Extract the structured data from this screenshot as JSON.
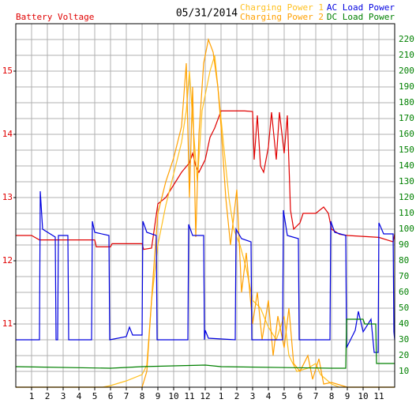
{
  "chart_data": {
    "type": "line",
    "title": "05/31/2014",
    "xlim": [
      0,
      24
    ],
    "xticks": [
      1,
      2,
      3,
      4,
      5,
      6,
      7,
      8,
      9,
      10,
      11,
      12,
      {
        "value": 13,
        "label": "1"
      },
      {
        "value": 14,
        "label": "2"
      },
      {
        "value": 15,
        "label": "3"
      },
      {
        "value": 16,
        "label": "4"
      },
      {
        "value": 17,
        "label": "5"
      },
      {
        "value": 18,
        "label": "6"
      },
      {
        "value": 19,
        "label": "7"
      },
      {
        "value": 20,
        "label": "8"
      },
      {
        "value": 21,
        "label": "9"
      },
      {
        "value": 22,
        "label": "10"
      },
      {
        "value": 23,
        "label": "11"
      }
    ],
    "ylim": [
      10,
      15.75
    ],
    "yticks": [
      11,
      12,
      13,
      14,
      15
    ],
    "ycolor": "#e00000",
    "y2lim": [
      0,
      230
    ],
    "y2ticks": [
      10,
      20,
      30,
      40,
      50,
      60,
      70,
      80,
      90,
      100,
      110,
      120,
      130,
      140,
      150,
      160,
      170,
      180,
      190,
      200,
      210,
      220
    ],
    "y2color": "#008000",
    "grid": true,
    "series": [
      {
        "name": "Battery Voltage",
        "color": "#e00000",
        "x": [
          0,
          1,
          1.5,
          5,
          5.1,
          6,
          6.1,
          8,
          8.1,
          8.6,
          8.8,
          9,
          9.5,
          10,
          10.5,
          11,
          11.2,
          11.4,
          11.6,
          12,
          12.3,
          12.6,
          13,
          14.5,
          15,
          15.1,
          15.3,
          15.5,
          15.7,
          16,
          16.2,
          16.5,
          16.7,
          17,
          17.2,
          17.4,
          17.6,
          18,
          18.2,
          19,
          19.5,
          19.8,
          20,
          20.5,
          21,
          23,
          23.5,
          23.9,
          24
        ],
        "values": [
          12.4,
          12.4,
          12.33,
          12.33,
          12.22,
          12.22,
          12.27,
          12.27,
          12.18,
          12.2,
          12.55,
          12.9,
          13.0,
          13.2,
          13.4,
          13.55,
          13.7,
          13.5,
          13.4,
          13.6,
          13.95,
          14.1,
          14.37,
          14.37,
          14.36,
          13.6,
          14.3,
          13.5,
          13.4,
          13.8,
          14.35,
          13.6,
          14.35,
          13.7,
          14.3,
          12.8,
          12.5,
          12.6,
          12.75,
          12.75,
          12.85,
          12.75,
          12.5,
          12.42,
          12.4,
          12.37,
          12.33,
          12.3,
          12.42
        ]
      },
      {
        "name": "Charging Power 1",
        "color": "#ffc020",
        "axis": "y2",
        "x": [
          0,
          5.5,
          6,
          7,
          8,
          8.3,
          8.6,
          9,
          9.5,
          10,
          10.5,
          10.8,
          11,
          11.2,
          11.5,
          11.8,
          12,
          12.3,
          12.6,
          12.9,
          13.2,
          13.5,
          13.8,
          14.2,
          14.6,
          15,
          15.5,
          16,
          16.5,
          17,
          17.3,
          17.8,
          18.5,
          19,
          19.3,
          20,
          20.5,
          24
        ],
        "values": [
          0,
          0,
          1,
          4,
          8,
          14,
          55,
          90,
          115,
          135,
          155,
          175,
          200,
          170,
          130,
          175,
          185,
          200,
          210,
          180,
          150,
          120,
          100,
          90,
          75,
          55,
          50,
          38,
          30,
          45,
          20,
          10,
          12,
          15,
          8,
          2,
          0,
          0
        ]
      },
      {
        "name": "Charging Power 2",
        "color": "#ffa000",
        "axis": "y2",
        "x": [
          0,
          8,
          8.3,
          8.7,
          9,
          9.5,
          10,
          10.5,
          10.8,
          11,
          11.2,
          11.4,
          11.6,
          11.9,
          12.2,
          12.5,
          12.8,
          13,
          13.3,
          13.6,
          14,
          14.3,
          14.6,
          15,
          15.3,
          15.6,
          16,
          16.3,
          16.6,
          17,
          17.3,
          17.6,
          18,
          18.5,
          18.8,
          19.2,
          19.5,
          20,
          21,
          24
        ],
        "values": [
          0,
          0,
          10,
          70,
          110,
          130,
          145,
          165,
          205,
          120,
          190,
          95,
          160,
          205,
          220,
          212,
          190,
          165,
          120,
          90,
          125,
          60,
          85,
          40,
          60,
          30,
          55,
          20,
          45,
          25,
          50,
          15,
          10,
          20,
          5,
          18,
          2,
          3,
          0,
          0
        ]
      },
      {
        "name": "AC Load Power",
        "color": "#0000e0",
        "axis": "y2",
        "x": [
          0,
          1.5,
          1.55,
          1.7,
          2.5,
          2.55,
          2.65,
          2.7,
          3.3,
          3.35,
          4.8,
          4.85,
          5,
          5.9,
          5.95,
          7,
          7.2,
          7.4,
          8,
          8.05,
          8.3,
          8.9,
          8.95,
          10.9,
          10.95,
          11.2,
          11.9,
          11.95,
          12,
          12.2,
          13.9,
          13.95,
          14.3,
          14.9,
          14.95,
          16.9,
          16.95,
          17.2,
          17.9,
          17.95,
          19.9,
          19.95,
          20.2,
          20.9,
          20.95,
          21.5,
          21.7,
          22,
          22.5,
          22.7,
          22.95,
          23,
          23.3,
          23.9,
          23.95,
          24
        ],
        "values": [
          30,
          30,
          124,
          100,
          95,
          30,
          30,
          96,
          96,
          30,
          30,
          105,
          98,
          96,
          30,
          32,
          38,
          33,
          33,
          105,
          98,
          96,
          30,
          30,
          103,
          96,
          96,
          30,
          36,
          31,
          30,
          100,
          94,
          92,
          30,
          30,
          112,
          96,
          94,
          30,
          30,
          105,
          98,
          96,
          25,
          36,
          48,
          35,
          43,
          22,
          22,
          104,
          97,
          97,
          35,
          30
        ]
      },
      {
        "name": "DC Load Power",
        "color": "#008000",
        "axis": "y2",
        "x": [
          0,
          6,
          8,
          12,
          13,
          20,
          20.9,
          20.95,
          22,
          22.1,
          22.8,
          22.85,
          24
        ],
        "values": [
          13,
          12,
          13,
          14,
          13,
          12,
          12,
          43,
          43,
          40,
          40,
          15,
          15
        ]
      }
    ]
  }
}
